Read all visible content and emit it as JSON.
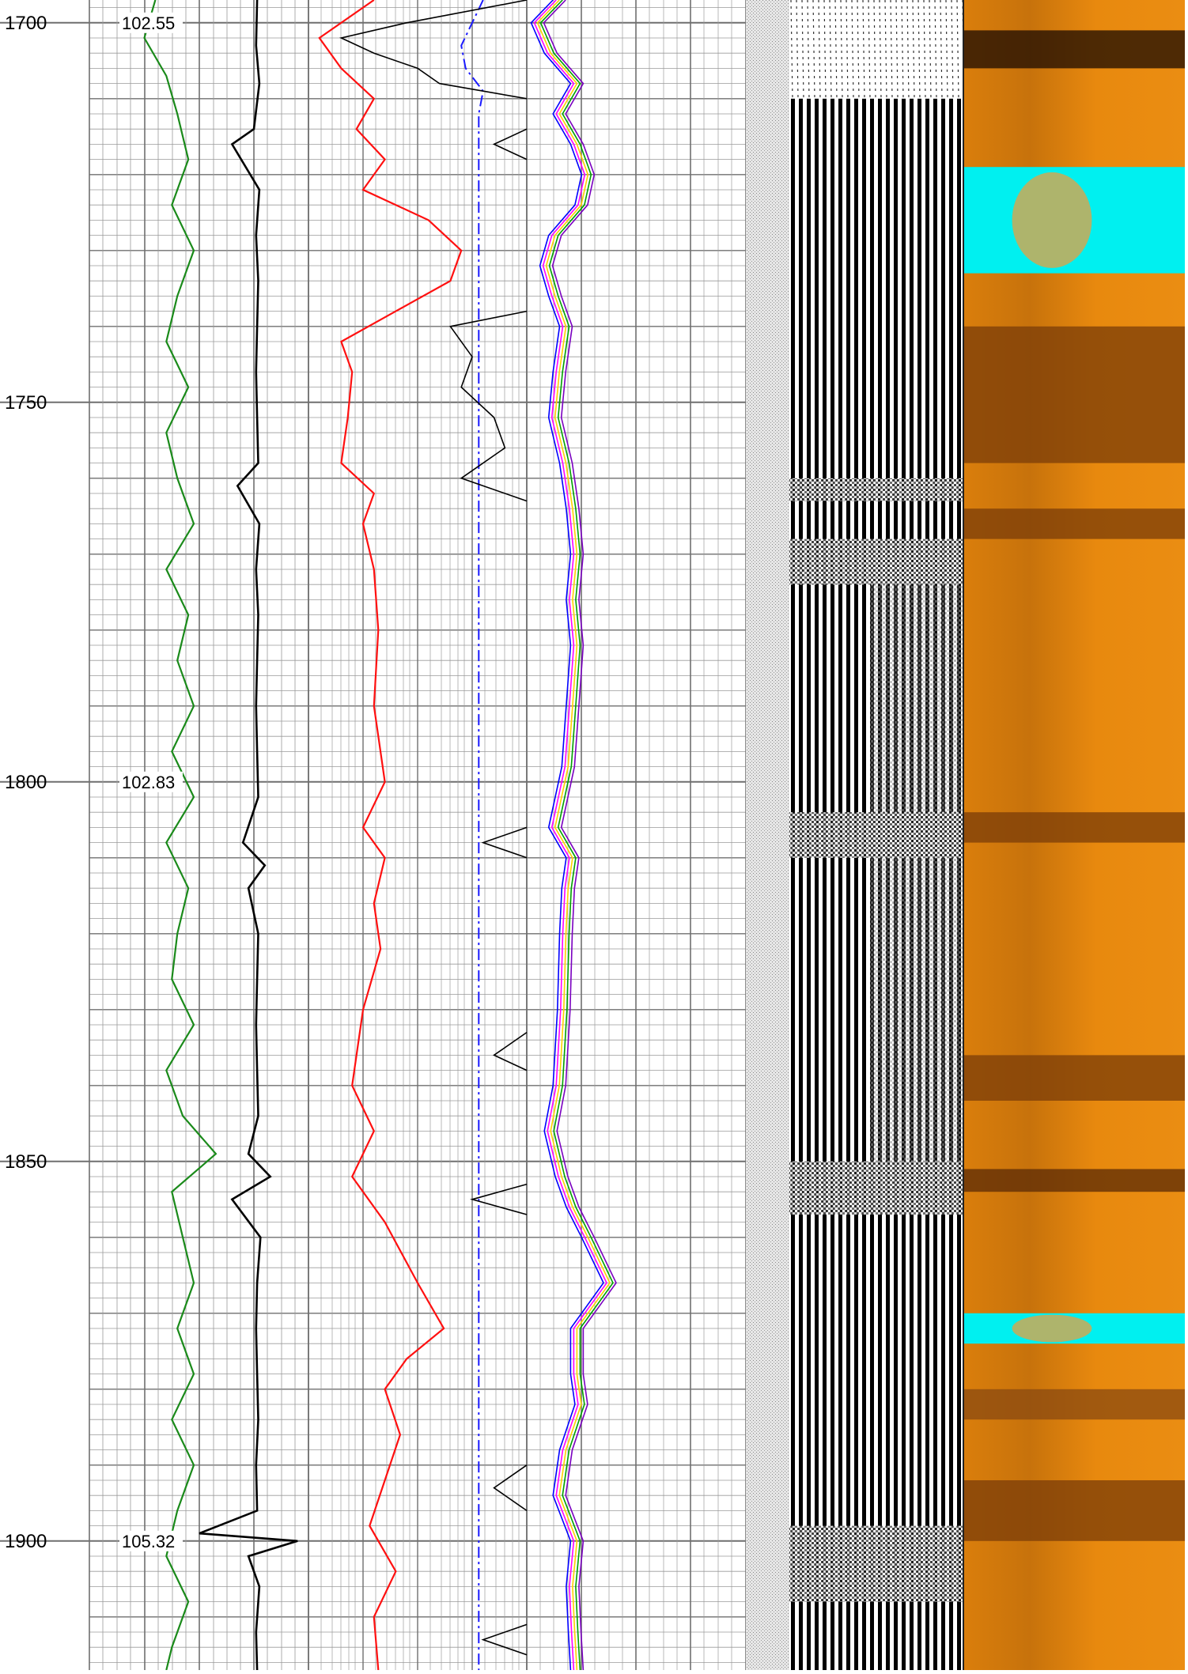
{
  "chart_data": {
    "type": "line",
    "title": "",
    "depth_axis": {
      "range": [
        1697,
        1917
      ],
      "tick_labels": [
        "1700",
        "1750",
        "1800",
        "1850",
        "1900"
      ],
      "ticks": [
        1700,
        1750,
        1800,
        1850,
        1900
      ],
      "grid_major_every": 50,
      "grid_medium_every": 10,
      "grid_minor_every": 2
    },
    "annotations": [
      {
        "depth": 1700,
        "label": "102.55"
      },
      {
        "depth": 1800,
        "label": "102.83"
      },
      {
        "depth": 1900,
        "label": "105.32"
      }
    ],
    "colors": {
      "grid_minor": "#9a9a9a",
      "grid_major": "#6f6f6f",
      "green": "#1a8a1a",
      "black": "#000000",
      "red": "#ff1010",
      "blue_dashdot": "#1a1aff",
      "vdl_bg": "#d6d6d6",
      "image_orange": "#e8890e",
      "image_dark": "#7a3c08",
      "image_cyan": "#00f0f0"
    },
    "tracks": [
      {
        "id": "track1",
        "series": [
          {
            "color": "green",
            "depths": [
              1697,
              1702,
              1707,
              1712,
              1718,
              1724,
              1730,
              1736,
              1742,
              1748,
              1754,
              1760,
              1766,
              1772,
              1778,
              1784,
              1790,
              1796,
              1802,
              1808,
              1814,
              1820,
              1826,
              1832,
              1838,
              1844,
              1849,
              1854,
              1860,
              1866,
              1872,
              1878,
              1884,
              1890,
              1896,
              1902,
              1908,
              1914,
              1917
            ],
            "values": [
              0.6,
              0.5,
              0.7,
              0.8,
              0.9,
              0.75,
              0.95,
              0.8,
              0.7,
              0.9,
              0.7,
              0.8,
              0.95,
              0.7,
              0.9,
              0.8,
              0.95,
              0.75,
              0.95,
              0.7,
              0.9,
              0.8,
              0.75,
              0.95,
              0.7,
              0.85,
              1.15,
              0.75,
              0.85,
              0.95,
              0.8,
              0.95,
              0.75,
              0.95,
              0.8,
              0.7,
              0.9,
              0.75,
              0.7
            ]
          }
        ]
      },
      {
        "id": "track2",
        "series": [
          {
            "color": "black",
            "depths": [
              1697,
              1703,
              1708,
              1714,
              1716,
              1722,
              1728,
              1734,
              1740,
              1746,
              1752,
              1758,
              1761,
              1766,
              1772,
              1778,
              1784,
              1790,
              1796,
              1802,
              1808,
              1811,
              1814,
              1820,
              1826,
              1832,
              1838,
              1844,
              1849,
              1852,
              1855,
              1860,
              1866,
              1872,
              1878,
              1884,
              1890,
              1896,
              1899,
              1900,
              1902,
              1906,
              1912,
              1917
            ],
            "values": [
              0.53,
              0.52,
              0.55,
              0.5,
              0.3,
              0.55,
              0.52,
              0.54,
              0.53,
              0.52,
              0.53,
              0.54,
              0.35,
              0.55,
              0.52,
              0.54,
              0.53,
              0.52,
              0.53,
              0.54,
              0.4,
              0.6,
              0.45,
              0.54,
              0.53,
              0.52,
              0.53,
              0.54,
              0.45,
              0.65,
              0.3,
              0.56,
              0.53,
              0.52,
              0.53,
              0.54,
              0.52,
              0.53,
              0.0,
              0.9,
              0.45,
              0.55,
              0.52,
              0.53
            ]
          }
        ]
      },
      {
        "id": "track3",
        "series": [
          {
            "color": "red",
            "depths": [
              1697,
              1702,
              1706,
              1710,
              1714,
              1718,
              1722,
              1726,
              1730,
              1734,
              1738,
              1742,
              1746,
              1752,
              1758,
              1762,
              1766,
              1772,
              1780,
              1790,
              1800,
              1806,
              1810,
              1816,
              1822,
              1830,
              1840,
              1846,
              1852,
              1858,
              1866,
              1872,
              1876,
              1880,
              1886,
              1892,
              1898,
              1904,
              1910,
              1917
            ],
            "values": [
              0.3,
              0.05,
              0.15,
              0.3,
              0.22,
              0.35,
              0.25,
              0.55,
              0.7,
              0.65,
              0.4,
              0.15,
              0.2,
              0.18,
              0.15,
              0.3,
              0.25,
              0.3,
              0.32,
              0.3,
              0.35,
              0.25,
              0.35,
              0.3,
              0.33,
              0.25,
              0.2,
              0.3,
              0.2,
              0.35,
              0.5,
              0.62,
              0.45,
              0.35,
              0.42,
              0.35,
              0.28,
              0.4,
              0.3,
              0.32
            ]
          }
        ]
      },
      {
        "id": "track3_lines",
        "series": [
          {
            "color": "blue_dashdot",
            "depths": [
              1697,
              1700,
              1703,
              1706,
              1709,
              1712,
              1740,
              1780,
              1808,
              1812,
              1860,
              1917
            ],
            "values": [
              0.8,
              0.75,
              0.7,
              0.72,
              0.8,
              0.78,
              0.78,
              0.78,
              0.78,
              0.78,
              0.78,
              0.78
            ]
          },
          {
            "color": "black",
            "depths": [
              1697,
              1700,
              1702,
              1704,
              1706,
              1708,
              1710
            ],
            "values": [
              1.0,
              0.45,
              0.15,
              0.3,
              0.5,
              0.6,
              1.0
            ]
          },
          {
            "color": "black",
            "depths": [
              1714,
              1716,
              1718
            ],
            "values": [
              1.0,
              0.85,
              1.0
            ]
          },
          {
            "color": "black",
            "depths": [
              1738,
              1740,
              1744,
              1748,
              1752,
              1756,
              1760,
              1763
            ],
            "values": [
              1.0,
              0.65,
              0.75,
              0.7,
              0.85,
              0.9,
              0.7,
              1.0
            ]
          },
          {
            "color": "black",
            "depths": [
              1806,
              1808,
              1810
            ],
            "values": [
              1.0,
              0.8,
              1.0
            ]
          },
          {
            "color": "black",
            "depths": [
              1833,
              1836,
              1838
            ],
            "values": [
              1.0,
              0.85,
              1.0
            ]
          },
          {
            "color": "black",
            "depths": [
              1853,
              1855,
              1857
            ],
            "values": [
              1.0,
              0.75,
              1.0
            ]
          },
          {
            "color": "black",
            "depths": [
              1890,
              1893,
              1896
            ],
            "values": [
              1.0,
              0.85,
              1.0
            ]
          },
          {
            "color": "black",
            "depths": [
              1911,
              1913,
              1915
            ],
            "values": [
              1.0,
              0.8,
              1.0
            ]
          }
        ]
      },
      {
        "id": "track4",
        "series": [
          {
            "color": "base",
            "depths": [
              1697,
              1700,
              1704,
              1708,
              1712,
              1716,
              1720,
              1724,
              1728,
              1732,
              1736,
              1740,
              1746,
              1752,
              1758,
              1764,
              1770,
              1776,
              1782,
              1790,
              1798,
              1806,
              1810,
              1814,
              1820,
              1830,
              1840,
              1846,
              1852,
              1856,
              1860,
              1866,
              1872,
              1878,
              1882,
              1888,
              1894,
              1900,
              1906,
              1912,
              1917
            ],
            "values": [
              0.12,
              0.02,
              0.08,
              0.2,
              0.12,
              0.2,
              0.25,
              0.22,
              0.1,
              0.06,
              0.1,
              0.15,
              0.12,
              0.1,
              0.15,
              0.18,
              0.2,
              0.18,
              0.2,
              0.18,
              0.16,
              0.1,
              0.18,
              0.16,
              0.15,
              0.14,
              0.12,
              0.08,
              0.13,
              0.18,
              0.25,
              0.35,
              0.2,
              0.2,
              0.22,
              0.15,
              0.12,
              0.2,
              0.18,
              0.19,
              0.2
            ]
          }
        ]
      }
    ],
    "vdl_band_depths": [
      1760,
      1763,
      1768,
      1774,
      1804,
      1810,
      1850,
      1857,
      1898,
      1908
    ],
    "image_log": {
      "dark_bands": [
        {
          "from": 1701,
          "to": 1706,
          "color": "#1a0a02"
        },
        {
          "from": 1740,
          "to": 1758,
          "color": "#7a3c08"
        },
        {
          "from": 1764,
          "to": 1768,
          "color": "#7a3c08"
        },
        {
          "from": 1804,
          "to": 1808,
          "color": "#7a3c08"
        },
        {
          "from": 1836,
          "to": 1842,
          "color": "#7a3c08"
        },
        {
          "from": 1851,
          "to": 1854,
          "color": "#5a2a05"
        },
        {
          "from": 1880,
          "to": 1884,
          "color": "#8a4a10"
        },
        {
          "from": 1892,
          "to": 1900,
          "color": "#7a3c08"
        }
      ],
      "cyan_bands": [
        {
          "from": 1719,
          "to": 1733
        },
        {
          "from": 1870,
          "to": 1874
        }
      ]
    }
  }
}
